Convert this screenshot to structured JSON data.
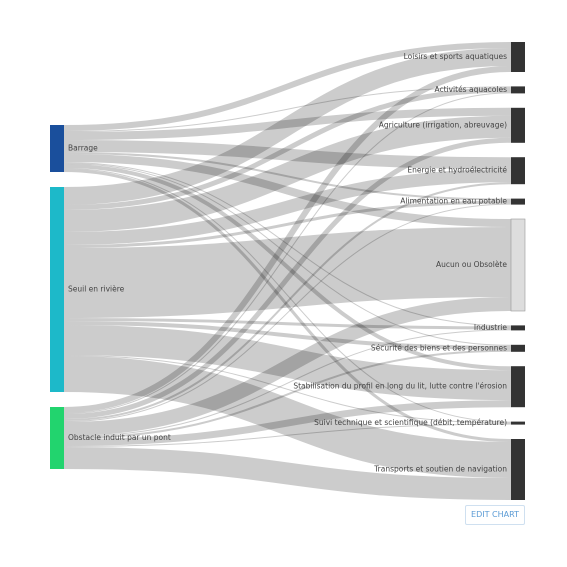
{
  "chart_data": {
    "type": "sankey",
    "nodes": [
      {
        "name": "Barrage",
        "color": "#1a4f9c"
      },
      {
        "name": "Seuil en rivière",
        "color": "#1db9c9"
      },
      {
        "name": "Obstacle induit par un pont",
        "color": "#22d46e"
      },
      {
        "name": "Loisirs et sports aquatiques",
        "color": "#333333"
      },
      {
        "name": "Activités aquacoles",
        "color": "#333333"
      },
      {
        "name": "Agriculture (irrigation, abreuvage)",
        "color": "#333333"
      },
      {
        "name": "Energie et hydroélectricité",
        "color": "#333333"
      },
      {
        "name": "Alimentation en eau potable",
        "color": "#333333"
      },
      {
        "name": "Aucun ou Obsolète",
        "color": "#dddddd"
      },
      {
        "name": "Industrie",
        "color": "#333333"
      },
      {
        "name": "Sécurité des biens et des personnes",
        "color": "#333333"
      },
      {
        "name": "Stabilisation du profil en long du lit, lutte contre l'érosion",
        "color": "#333333"
      },
      {
        "name": "Suivi technique et scientifique (débit, température)",
        "color": "#333333"
      },
      {
        "name": "Transports et soutien de navigation",
        "color": "#333333"
      }
    ],
    "links": [
      {
        "source": 0,
        "target": 3,
        "value": 6
      },
      {
        "source": 0,
        "target": 4,
        "value": 1
      },
      {
        "source": 0,
        "target": 5,
        "value": 8
      },
      {
        "source": 0,
        "target": 6,
        "value": 12
      },
      {
        "source": 0,
        "target": 7,
        "value": 2
      },
      {
        "source": 0,
        "target": 8,
        "value": 8
      },
      {
        "source": 0,
        "target": 9,
        "value": 1
      },
      {
        "source": 0,
        "target": 10,
        "value": 1
      },
      {
        "source": 0,
        "target": 11,
        "value": 4
      },
      {
        "source": 0,
        "target": 12,
        "value": 1
      },
      {
        "source": 0,
        "target": 13,
        "value": 3
      },
      {
        "source": 1,
        "target": 3,
        "value": 18
      },
      {
        "source": 1,
        "target": 4,
        "value": 5
      },
      {
        "source": 1,
        "target": 5,
        "value": 22
      },
      {
        "source": 1,
        "target": 6,
        "value": 13
      },
      {
        "source": 1,
        "target": 7,
        "value": 3
      },
      {
        "source": 1,
        "target": 8,
        "value": 70
      },
      {
        "source": 1,
        "target": 9,
        "value": 3
      },
      {
        "source": 1,
        "target": 10,
        "value": 4
      },
      {
        "source": 1,
        "target": 11,
        "value": 30
      },
      {
        "source": 1,
        "target": 12,
        "value": 1
      },
      {
        "source": 1,
        "target": 13,
        "value": 36
      },
      {
        "source": 2,
        "target": 3,
        "value": 6
      },
      {
        "source": 2,
        "target": 4,
        "value": 1
      },
      {
        "source": 2,
        "target": 5,
        "value": 5
      },
      {
        "source": 2,
        "target": 6,
        "value": 2
      },
      {
        "source": 2,
        "target": 7,
        "value": 1
      },
      {
        "source": 2,
        "target": 8,
        "value": 14
      },
      {
        "source": 2,
        "target": 9,
        "value": 1
      },
      {
        "source": 2,
        "target": 10,
        "value": 2
      },
      {
        "source": 2,
        "target": 11,
        "value": 7
      },
      {
        "source": 2,
        "target": 12,
        "value": 1
      },
      {
        "source": 2,
        "target": 13,
        "value": 22
      }
    ]
  },
  "edit_button": "EDIT CHART"
}
